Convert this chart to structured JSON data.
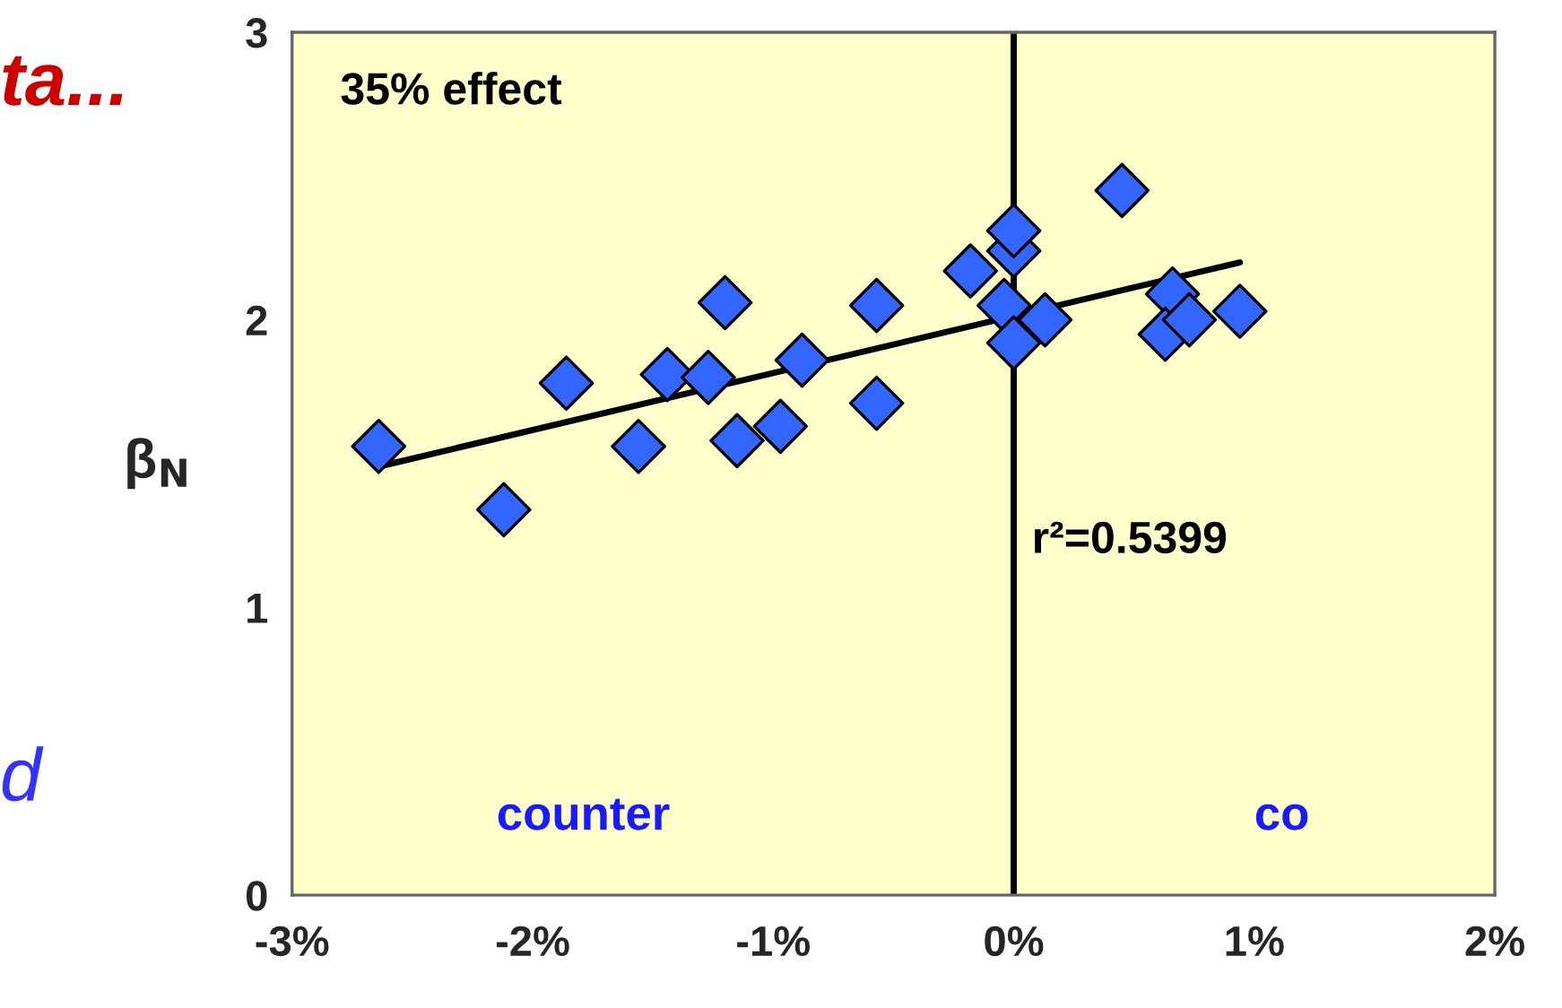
{
  "chart_data": {
    "type": "scatter",
    "ylabel": "β$_{N}$",
    "x": [
      -2.64,
      -2.12,
      -1.86,
      -1.56,
      -1.44,
      -1.27,
      -1.2,
      -1.15,
      -0.97,
      -0.88,
      -0.57,
      -0.57,
      -0.18,
      -0.04,
      0,
      0,
      0,
      0.13,
      0.45,
      0.66,
      0.63,
      0.73,
      0.94
    ],
    "series": [
      {
        "color": "#3366ff",
        "marker": "diamond",
        "values": [
          1.56,
          1.34,
          1.78,
          1.56,
          1.81,
          1.8,
          2.06,
          1.58,
          1.63,
          1.86,
          2.05,
          1.71,
          2.17,
          2.05,
          2.24,
          2.31,
          1.92,
          2.0,
          2.45,
          2.09,
          1.95,
          2.0,
          2.03
        ]
      },
      {
        "type": "line",
        "color": "#000000",
        "marker": "none",
        "x": [
          -2.64,
          0.94
        ],
        "values": [
          1.49,
          2.2
        ]
      }
    ],
    "xlim": [
      -3,
      2
    ],
    "xticks": [
      {
        "value": -3,
        "label": "-3%"
      },
      {
        "value": -2,
        "label": "-2%"
      },
      {
        "value": -1,
        "label": "-1%"
      },
      {
        "value": 0,
        "label": "0%"
      },
      {
        "value": 1,
        "label": "1%"
      },
      {
        "value": 2,
        "label": "2%"
      }
    ],
    "ylim": [
      0,
      3
    ],
    "yticks": [
      0,
      1,
      2,
      3
    ],
    "ref_lines": [
      {
        "axis": "x",
        "value": 0,
        "color": "#000000"
      }
    ],
    "annotations": [
      "35% effect",
      "r²=0.5399",
      "counter",
      "co",
      "ta...",
      "d"
    ]
  }
}
